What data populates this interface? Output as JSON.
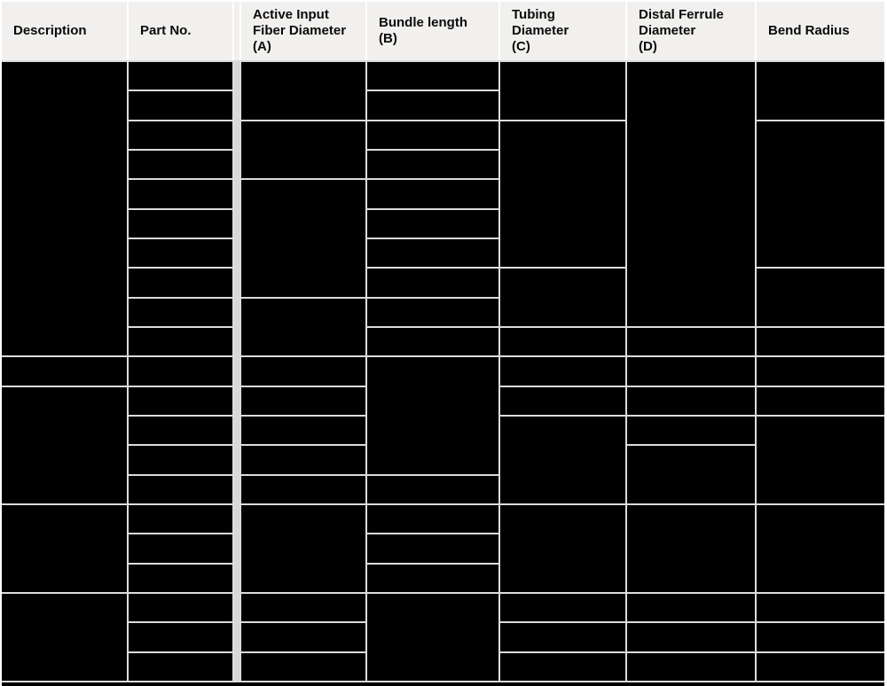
{
  "table": {
    "headers": [
      {
        "id": "description",
        "label": "Description"
      },
      {
        "id": "part_no",
        "label": "Part No."
      },
      {
        "id": "active_input_fiber_diameter",
        "label": "Active Input\nFiber Diameter\n(A)"
      },
      {
        "id": "bundle_length",
        "label": "Bundle length\n(B)"
      },
      {
        "id": "tubing_diameter",
        "label": "Tubing\nDiameter\n(C)"
      },
      {
        "id": "distal_ferrule_diameter",
        "label": "Distal Ferrule\nDiameter\n(D)"
      },
      {
        "id": "bend_radius",
        "label": "Bend Radius"
      }
    ],
    "body": {
      "row_count": 21,
      "cell_text": "",
      "column_order": [
        "description",
        "part_no",
        "spacer",
        "active_input_fiber_diameter",
        "bundle_length",
        "tubing_diameter",
        "distal_ferrule_diameter",
        "bend_radius"
      ],
      "rowspans": {
        "description": [
          10,
          1,
          4,
          3,
          3
        ],
        "part_no": [
          1,
          1,
          1,
          1,
          1,
          1,
          1,
          1,
          1,
          1,
          1,
          1,
          1,
          1,
          1,
          1,
          1,
          1,
          1,
          1,
          1
        ],
        "spacer": [
          21
        ],
        "active_input_fiber_diameter": [
          2,
          2,
          4,
          2,
          1,
          1,
          1,
          1,
          1,
          3,
          1,
          1,
          1
        ],
        "bundle_length": [
          1,
          1,
          1,
          1,
          1,
          1,
          1,
          1,
          1,
          1,
          4,
          1,
          1,
          1,
          1,
          3
        ],
        "tubing_diameter": [
          2,
          5,
          2,
          1,
          1,
          1,
          3,
          3,
          1,
          1,
          1
        ],
        "distal_ferrule_diameter": [
          9,
          1,
          1,
          1,
          1,
          2,
          3,
          1,
          1,
          1
        ],
        "bend_radius": [
          2,
          5,
          2,
          1,
          1,
          1,
          3,
          3,
          1,
          1,
          1
        ]
      }
    },
    "colors": {
      "header_bg": "#f1f0ee",
      "grid_line": "#dcdcdc",
      "spacer_band": "#d8d8d8",
      "cell_bg": "#000000",
      "header_text": "#0b0b0b",
      "bottom_border": "#000000"
    }
  }
}
